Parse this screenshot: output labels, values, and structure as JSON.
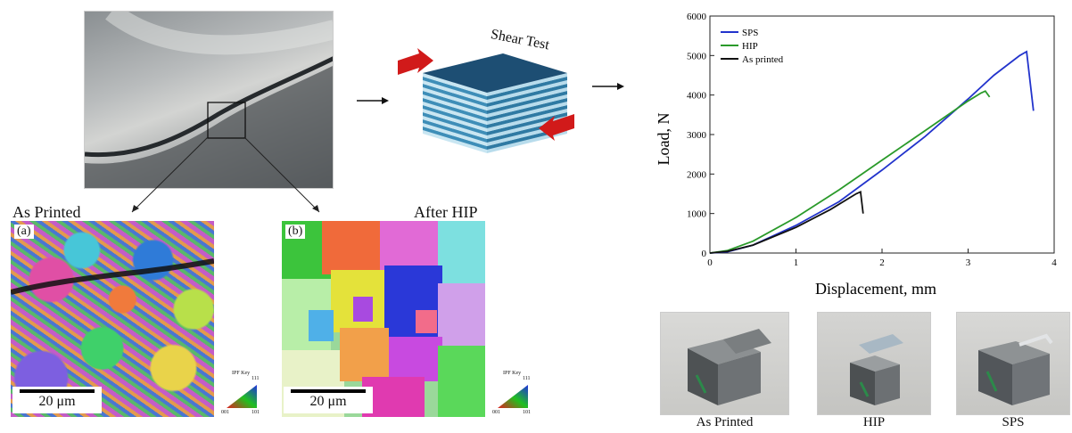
{
  "figure": {
    "macro_photo": {
      "icon": "fracture-surface-photo"
    },
    "shear_block": {
      "label": "Shear Test"
    },
    "ebsd_left": {
      "title": "As Printed",
      "panel_label": "(a)",
      "scale_bar_label": "20 μm",
      "ipf_key_label": "IPF Key",
      "ipf_corners": [
        "001",
        "101",
        "111"
      ]
    },
    "ebsd_right": {
      "title": "After HIP",
      "panel_label": "(b)",
      "scale_bar_label": "20 μm",
      "ipf_key_label": "IPF Key",
      "ipf_corners": [
        "001",
        "101",
        "111"
      ]
    },
    "samples": [
      {
        "caption": "As Printed",
        "icon": "sample-cube-photo"
      },
      {
        "caption": "HIP",
        "icon": "sample-cube-photo"
      },
      {
        "caption": "SPS",
        "icon": "sample-cube-photo"
      }
    ]
  },
  "chart_data": {
    "type": "line",
    "title": "",
    "xlabel": "Displacement, mm",
    "ylabel": "Load, N",
    "xlim": [
      0,
      4
    ],
    "ylim": [
      0,
      6000
    ],
    "xticks": [
      0,
      1,
      2,
      3,
      4
    ],
    "yticks": [
      0,
      1000,
      2000,
      3000,
      4000,
      5000,
      6000
    ],
    "legend_position": "top-left",
    "grid": false,
    "series": [
      {
        "name": "SPS",
        "color": "#2233cc",
        "x": [
          0,
          0.2,
          0.5,
          1.0,
          1.5,
          2.0,
          2.5,
          3.0,
          3.3,
          3.6,
          3.68,
          3.76
        ],
        "y": [
          0,
          30,
          200,
          700,
          1300,
          2100,
          2950,
          3900,
          4500,
          5000,
          5100,
          3600
        ]
      },
      {
        "name": "HIP",
        "color": "#2a9a2a",
        "x": [
          0,
          0.2,
          0.5,
          1.0,
          1.5,
          2.0,
          2.5,
          2.8,
          3.0,
          3.15,
          3.2,
          3.25
        ],
        "y": [
          0,
          60,
          300,
          900,
          1600,
          2350,
          3100,
          3550,
          3850,
          4050,
          4100,
          3950
        ]
      },
      {
        "name": "As printed",
        "color": "#111111",
        "x": [
          0,
          0.2,
          0.5,
          1.0,
          1.4,
          1.7,
          1.75,
          1.78
        ],
        "y": [
          0,
          40,
          200,
          650,
          1100,
          1500,
          1550,
          1000
        ]
      }
    ]
  }
}
